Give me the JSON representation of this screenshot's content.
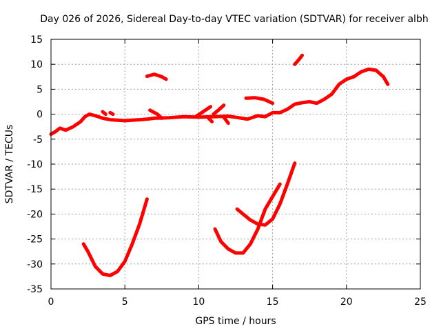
{
  "chart_data": {
    "type": "line",
    "title": "Day 026 of 2026, Sidereal Day-to-day VTEC variation (SDTVAR) for receiver albh",
    "xlabel": "GPS time / hours",
    "ylabel": "SDTVAR / TECUs",
    "xlim": [
      0,
      25
    ],
    "ylim": [
      -35,
      15
    ],
    "xticks": [
      0,
      5,
      10,
      15,
      20,
      25
    ],
    "yticks": [
      -35,
      -30,
      -25,
      -20,
      -15,
      -10,
      -5,
      0,
      5,
      10,
      15
    ],
    "grid": true,
    "series_color": "#ff0000",
    "series": [
      {
        "name": "main-trace",
        "points": [
          [
            0,
            -4
          ],
          [
            0.3,
            -3.5
          ],
          [
            0.6,
            -2.8
          ],
          [
            1.0,
            -3.2
          ],
          [
            1.5,
            -2.5
          ],
          [
            2.0,
            -1.5
          ],
          [
            2.3,
            -0.5
          ],
          [
            2.6,
            0
          ],
          [
            3.0,
            -0.3
          ],
          [
            3.5,
            -0.8
          ],
          [
            4.0,
            -1.1
          ],
          [
            4.5,
            -1.2
          ],
          [
            5.0,
            -1.3
          ],
          [
            5.5,
            -1.2
          ],
          [
            6.0,
            -1.1
          ],
          [
            6.5,
            -1.0
          ],
          [
            7.0,
            -0.8
          ],
          [
            8.0,
            -0.7
          ],
          [
            9.0,
            -0.5
          ],
          [
            10.0,
            -0.6
          ],
          [
            11.0,
            -0.5
          ],
          [
            12.0,
            -0.4
          ],
          [
            12.7,
            -0.7
          ],
          [
            13.3,
            -1.0
          ],
          [
            14.0,
            -0.3
          ],
          [
            14.5,
            -0.5
          ],
          [
            15.0,
            0.3
          ],
          [
            15.5,
            0.3
          ],
          [
            16.0,
            1.0
          ],
          [
            16.5,
            2.0
          ],
          [
            17.0,
            2.3
          ],
          [
            17.5,
            2.5
          ],
          [
            18.0,
            2.2
          ],
          [
            18.5,
            3.0
          ],
          [
            19.0,
            4.0
          ],
          [
            19.5,
            6.0
          ],
          [
            20.0,
            7.0
          ],
          [
            20.5,
            7.5
          ],
          [
            21.0,
            8.5
          ],
          [
            21.5,
            9.0
          ],
          [
            22.0,
            8.8
          ],
          [
            22.5,
            7.5
          ],
          [
            22.8,
            6.0
          ]
        ]
      },
      {
        "name": "arc-1",
        "points": [
          [
            2.2,
            -26
          ],
          [
            2.5,
            -27.5
          ],
          [
            3.0,
            -30.5
          ],
          [
            3.5,
            -32
          ],
          [
            4.0,
            -32.3
          ],
          [
            4.5,
            -31.5
          ],
          [
            5.0,
            -29.5
          ],
          [
            5.5,
            -26
          ],
          [
            6.0,
            -22
          ],
          [
            6.5,
            -17
          ]
        ]
      },
      {
        "name": "arc-2",
        "points": [
          [
            11.1,
            -23
          ],
          [
            11.5,
            -25.5
          ],
          [
            12.0,
            -27
          ],
          [
            12.5,
            -27.8
          ],
          [
            13.0,
            -27.8
          ],
          [
            13.5,
            -26
          ],
          [
            14.0,
            -23
          ],
          [
            14.5,
            -19
          ],
          [
            15.0,
            -16.5
          ],
          [
            15.5,
            -14
          ]
        ]
      },
      {
        "name": "arc-3",
        "points": [
          [
            12.6,
            -19
          ],
          [
            13.0,
            -20
          ],
          [
            13.5,
            -21.2
          ],
          [
            14.0,
            -22
          ],
          [
            14.5,
            -22.2
          ],
          [
            15.0,
            -21
          ],
          [
            15.5,
            -18
          ],
          [
            16.0,
            -14
          ],
          [
            16.5,
            -9.8
          ]
        ]
      },
      {
        "name": "segment-a",
        "points": [
          [
            6.5,
            7.6
          ],
          [
            7.0,
            8.0
          ],
          [
            7.5,
            7.5
          ],
          [
            7.8,
            7.0
          ]
        ]
      },
      {
        "name": "segment-b",
        "points": [
          [
            16.5,
            10.0
          ],
          [
            16.8,
            11.0
          ],
          [
            17.0,
            11.8
          ]
        ]
      },
      {
        "name": "segment-c",
        "points": [
          [
            13.2,
            3.2
          ],
          [
            13.8,
            3.3
          ],
          [
            14.4,
            3.0
          ],
          [
            15.0,
            2.2
          ]
        ]
      },
      {
        "name": "segment-d",
        "points": [
          [
            9.8,
            -0.5
          ],
          [
            10.3,
            0.5
          ],
          [
            10.8,
            1.5
          ]
        ]
      },
      {
        "name": "segment-e",
        "points": [
          [
            11.0,
            0
          ],
          [
            11.4,
            1.0
          ],
          [
            11.7,
            1.8
          ]
        ]
      },
      {
        "name": "segment-f",
        "points": [
          [
            10.6,
            -0.6
          ],
          [
            10.9,
            -1.5
          ]
        ]
      },
      {
        "name": "segment-g",
        "points": [
          [
            11.7,
            -0.6
          ],
          [
            12.0,
            -1.8
          ]
        ]
      },
      {
        "name": "segment-h",
        "points": [
          [
            6.7,
            0.8
          ],
          [
            7.2,
            0
          ],
          [
            7.5,
            -0.8
          ]
        ]
      },
      {
        "name": "segment-i",
        "points": [
          [
            3.5,
            0.5
          ],
          [
            3.7,
            0
          ]
        ]
      },
      {
        "name": "segment-j",
        "points": [
          [
            4.0,
            0.3
          ],
          [
            4.2,
            0
          ]
        ]
      }
    ]
  }
}
